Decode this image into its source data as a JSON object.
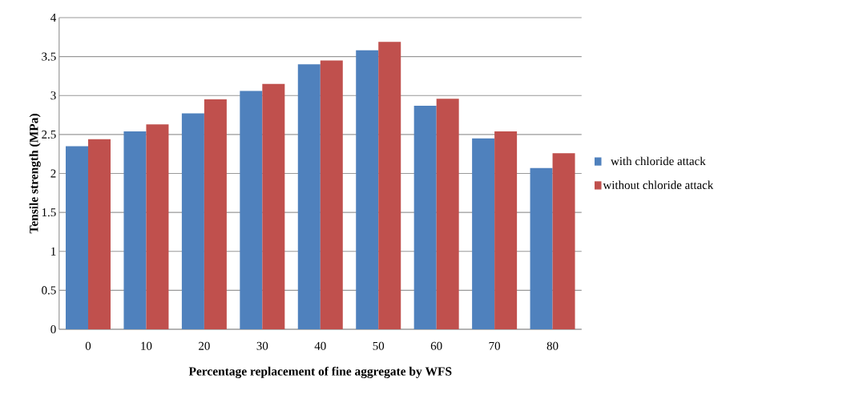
{
  "chart_data": {
    "type": "bar",
    "xlabel": "Percentage replacement of fine aggregate by WFS",
    "ylabel": "Tensile strength (MPa)",
    "categories": [
      "0",
      "10",
      "20",
      "30",
      "40",
      "50",
      "60",
      "70",
      "80"
    ],
    "series": [
      {
        "name": "with chloride attack",
        "color": "#4f81bd",
        "values": [
          2.35,
          2.54,
          2.77,
          3.06,
          3.4,
          3.58,
          2.87,
          2.45,
          2.07
        ]
      },
      {
        "name": "without chloride attack",
        "color": "#c0504d",
        "values": [
          2.44,
          2.63,
          2.95,
          3.15,
          3.45,
          3.69,
          2.96,
          2.54,
          2.26
        ]
      }
    ],
    "ylim": [
      0,
      4
    ],
    "yticks": [
      0,
      0.5,
      1,
      1.5,
      2,
      2.5,
      3,
      3.5,
      4
    ],
    "grid": "y",
    "legend": "right"
  }
}
